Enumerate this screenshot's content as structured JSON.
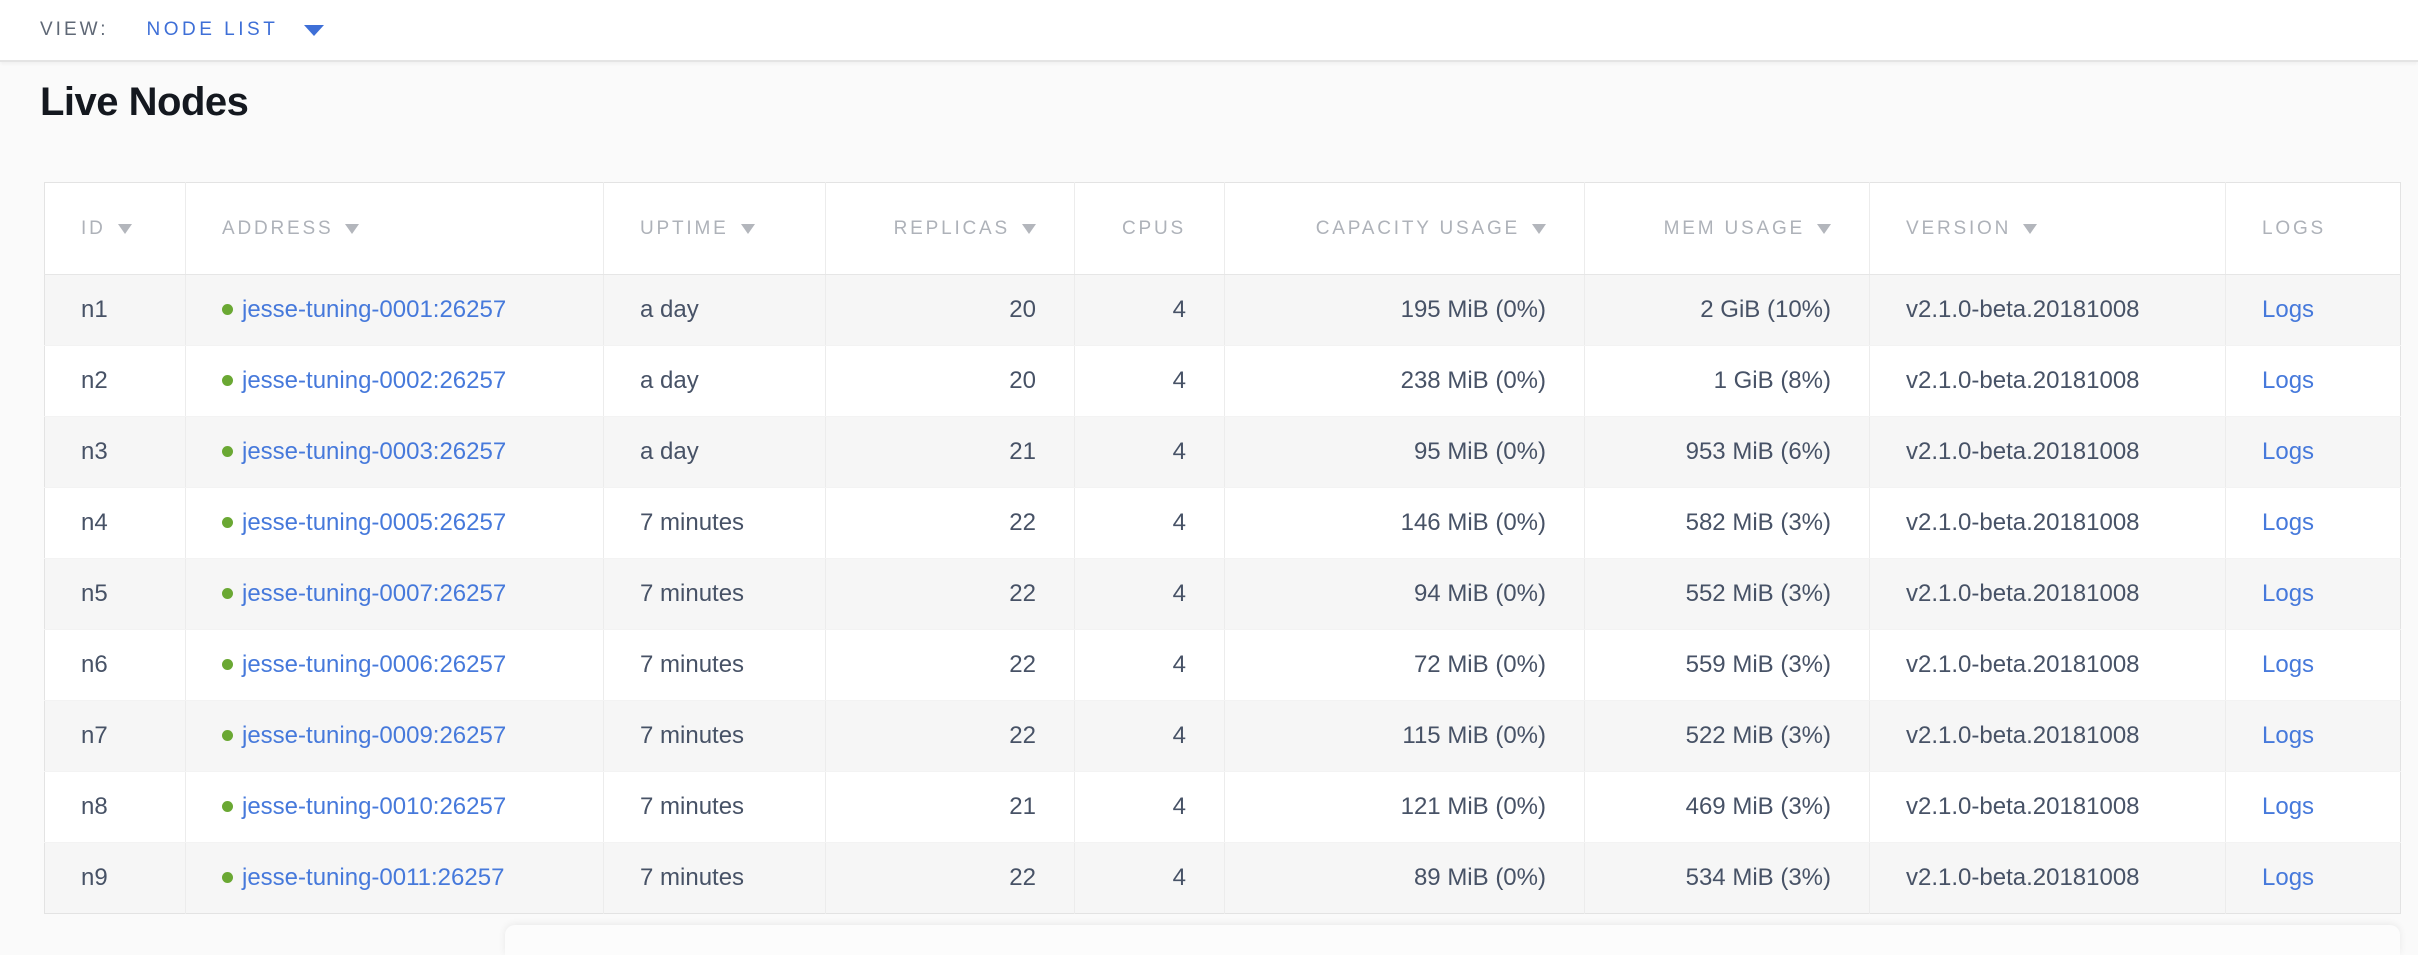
{
  "view_bar": {
    "label": "VIEW:",
    "selected": "NODE LIST"
  },
  "page": {
    "title": "Live Nodes"
  },
  "colors": {
    "link_blue": "#4679db",
    "view_blue": "#3e6fd7",
    "status_green": "#6aa833",
    "header_gray": "#aeb2b9",
    "cell_text": "#475266",
    "stripe": "#f6f6f6"
  },
  "table": {
    "columns": [
      {
        "key": "id",
        "label": "ID",
        "sortable": true,
        "align": "left"
      },
      {
        "key": "address",
        "label": "ADDRESS",
        "sortable": true,
        "align": "left"
      },
      {
        "key": "uptime",
        "label": "UPTIME",
        "sortable": true,
        "align": "left"
      },
      {
        "key": "replicas",
        "label": "REPLICAS",
        "sortable": true,
        "align": "right"
      },
      {
        "key": "cpus",
        "label": "CPUS",
        "sortable": false,
        "align": "right"
      },
      {
        "key": "capacity",
        "label": "CAPACITY USAGE",
        "sortable": true,
        "align": "right"
      },
      {
        "key": "mem",
        "label": "MEM USAGE",
        "sortable": true,
        "align": "right"
      },
      {
        "key": "version",
        "label": "VERSION",
        "sortable": true,
        "align": "left"
      },
      {
        "key": "logs",
        "label": "LOGS",
        "sortable": false,
        "align": "left"
      }
    ],
    "rows": [
      {
        "id": "n1",
        "status": "healthy",
        "address": "jesse-tuning-0001:26257",
        "uptime": "a day",
        "replicas": 20,
        "cpus": 4,
        "capacity": "195 MiB (0%)",
        "mem": "2 GiB (10%)",
        "version": "v2.1.0-beta.20181008",
        "logs": "Logs"
      },
      {
        "id": "n2",
        "status": "healthy",
        "address": "jesse-tuning-0002:26257",
        "uptime": "a day",
        "replicas": 20,
        "cpus": 4,
        "capacity": "238 MiB (0%)",
        "mem": "1 GiB (8%)",
        "version": "v2.1.0-beta.20181008",
        "logs": "Logs"
      },
      {
        "id": "n3",
        "status": "healthy",
        "address": "jesse-tuning-0003:26257",
        "uptime": "a day",
        "replicas": 21,
        "cpus": 4,
        "capacity": "95 MiB (0%)",
        "mem": "953 MiB (6%)",
        "version": "v2.1.0-beta.20181008",
        "logs": "Logs"
      },
      {
        "id": "n4",
        "status": "healthy",
        "address": "jesse-tuning-0005:26257",
        "uptime": "7 minutes",
        "replicas": 22,
        "cpus": 4,
        "capacity": "146 MiB (0%)",
        "mem": "582 MiB (3%)",
        "version": "v2.1.0-beta.20181008",
        "logs": "Logs"
      },
      {
        "id": "n5",
        "status": "healthy",
        "address": "jesse-tuning-0007:26257",
        "uptime": "7 minutes",
        "replicas": 22,
        "cpus": 4,
        "capacity": "94 MiB (0%)",
        "mem": "552 MiB (3%)",
        "version": "v2.1.0-beta.20181008",
        "logs": "Logs"
      },
      {
        "id": "n6",
        "status": "healthy",
        "address": "jesse-tuning-0006:26257",
        "uptime": "7 minutes",
        "replicas": 22,
        "cpus": 4,
        "capacity": "72 MiB (0%)",
        "mem": "559 MiB (3%)",
        "version": "v2.1.0-beta.20181008",
        "logs": "Logs"
      },
      {
        "id": "n7",
        "status": "healthy",
        "address": "jesse-tuning-0009:26257",
        "uptime": "7 minutes",
        "replicas": 22,
        "cpus": 4,
        "capacity": "115 MiB (0%)",
        "mem": "522 MiB (3%)",
        "version": "v2.1.0-beta.20181008",
        "logs": "Logs"
      },
      {
        "id": "n8",
        "status": "healthy",
        "address": "jesse-tuning-0010:26257",
        "uptime": "7 minutes",
        "replicas": 21,
        "cpus": 4,
        "capacity": "121 MiB (0%)",
        "mem": "469 MiB (3%)",
        "version": "v2.1.0-beta.20181008",
        "logs": "Logs"
      },
      {
        "id": "n9",
        "status": "healthy",
        "address": "jesse-tuning-0011:26257",
        "uptime": "7 minutes",
        "replicas": 22,
        "cpus": 4,
        "capacity": "89 MiB (0%)",
        "mem": "534 MiB (3%)",
        "version": "v2.1.0-beta.20181008",
        "logs": "Logs"
      }
    ]
  }
}
